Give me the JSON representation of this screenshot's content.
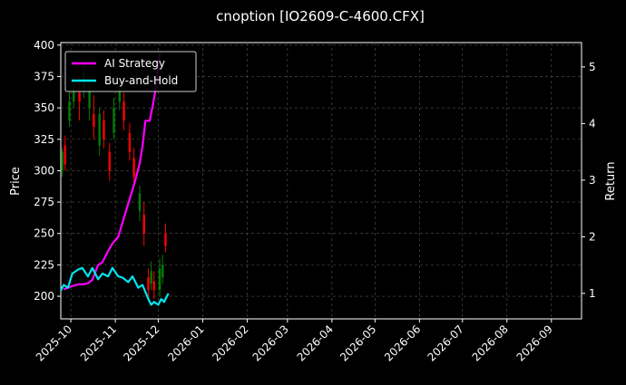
{
  "chart_data": {
    "type": "line",
    "title": "cnoption [IO2609-C-4600.CFX]",
    "xlabel": "",
    "ylabel_left": "Price",
    "ylabel_right": "Return",
    "x_ticks": [
      "2025-10",
      "2025-11",
      "2025-12",
      "2026-01",
      "2026-02",
      "2026-03",
      "2026-04",
      "2026-05",
      "2026-06",
      "2026-07",
      "2026-08",
      "2026-09"
    ],
    "x_range": [
      "2025-09-24",
      "2026-09-22"
    ],
    "y_left_ticks": [
      200,
      225,
      250,
      275,
      300,
      325,
      350,
      375,
      400
    ],
    "y_left_range": [
      182,
      402
    ],
    "y_right_ticks": [
      1,
      2,
      3,
      4,
      5
    ],
    "y_right_range": [
      0.55,
      5.43
    ],
    "grid": true,
    "legend_position": "top-left",
    "colors": {
      "background": "#000000",
      "grid": "#555555",
      "up": "#008000",
      "down": "#ff0000",
      "ai_strategy": "#ff00ff",
      "buy_and_hold": "#00e5ee"
    },
    "series": [
      {
        "name": "AI Strategy",
        "axis": "right",
        "dates": [
          "2025-09-26",
          "2025-09-29",
          "2025-10-02",
          "2025-10-06",
          "2025-10-09",
          "2025-10-13",
          "2025-10-16",
          "2025-10-20",
          "2025-10-23",
          "2025-10-27",
          "2025-10-30",
          "2025-11-03",
          "2025-11-06",
          "2025-11-09",
          "2025-11-12",
          "2025-11-15",
          "2025-11-18",
          "2025-11-20",
          "2025-11-22",
          "2025-11-25",
          "2025-11-27",
          "2025-11-29",
          "2025-12-01",
          "2025-12-02"
        ],
        "values": [
          1.07,
          1.1,
          1.13,
          1.16,
          1.16,
          1.18,
          1.24,
          1.5,
          1.55,
          1.75,
          1.88,
          2.0,
          2.25,
          2.5,
          2.75,
          3.0,
          3.3,
          3.6,
          4.05,
          4.05,
          4.3,
          4.6,
          5.0,
          5.25
        ]
      },
      {
        "name": "Buy-and-Hold",
        "axis": "right",
        "dates": [
          "2025-09-24",
          "2025-09-26",
          "2025-09-29",
          "2025-10-02",
          "2025-10-06",
          "2025-10-09",
          "2025-10-13",
          "2025-10-16",
          "2025-10-20",
          "2025-10-23",
          "2025-10-27",
          "2025-10-30",
          "2025-11-03",
          "2025-11-06",
          "2025-11-10",
          "2025-11-13",
          "2025-11-17",
          "2025-11-20",
          "2025-11-24",
          "2025-11-26",
          "2025-11-28",
          "2025-12-01",
          "2025-12-03",
          "2025-12-05",
          "2025-12-08"
        ],
        "values": [
          1.05,
          1.15,
          1.1,
          1.35,
          1.42,
          1.45,
          1.3,
          1.45,
          1.25,
          1.35,
          1.3,
          1.45,
          1.3,
          1.28,
          1.2,
          1.3,
          1.1,
          1.15,
          0.9,
          0.8,
          0.85,
          0.8,
          0.9,
          0.85,
          1.0
        ]
      }
    ],
    "candles": [
      {
        "date": "2025-09-25",
        "open": 300,
        "close": 315,
        "high": 318,
        "low": 295
      },
      {
        "date": "2025-09-27",
        "open": 320,
        "close": 305,
        "high": 328,
        "low": 300
      },
      {
        "date": "2025-09-30",
        "open": 340,
        "close": 355,
        "high": 362,
        "low": 335
      },
      {
        "date": "2025-10-03",
        "open": 355,
        "close": 370,
        "high": 378,
        "low": 350
      },
      {
        "date": "2025-10-07",
        "open": 362,
        "close": 355,
        "high": 375,
        "low": 340
      },
      {
        "date": "2025-10-10",
        "open": 365,
        "close": 378,
        "high": 385,
        "low": 358
      },
      {
        "date": "2025-10-14",
        "open": 350,
        "close": 365,
        "high": 372,
        "low": 340
      },
      {
        "date": "2025-10-17",
        "open": 345,
        "close": 335,
        "high": 360,
        "low": 325
      },
      {
        "date": "2025-10-21",
        "open": 320,
        "close": 345,
        "high": 350,
        "low": 312
      },
      {
        "date": "2025-10-24",
        "open": 340,
        "close": 325,
        "high": 348,
        "low": 318
      },
      {
        "date": "2025-10-28",
        "open": 315,
        "close": 300,
        "high": 322,
        "low": 292
      },
      {
        "date": "2025-10-31",
        "open": 330,
        "close": 350,
        "high": 358,
        "low": 325
      },
      {
        "date": "2025-11-04",
        "open": 355,
        "close": 365,
        "high": 372,
        "low": 348
      },
      {
        "date": "2025-11-07",
        "open": 355,
        "close": 340,
        "high": 362,
        "low": 332
      },
      {
        "date": "2025-11-11",
        "open": 330,
        "close": 315,
        "high": 338,
        "low": 308
      },
      {
        "date": "2025-11-14",
        "open": 310,
        "close": 295,
        "high": 318,
        "low": 288
      },
      {
        "date": "2025-11-18",
        "open": 268,
        "close": 282,
        "high": 288,
        "low": 260
      },
      {
        "date": "2025-11-21",
        "open": 265,
        "close": 250,
        "high": 275,
        "low": 240
      },
      {
        "date": "2025-11-24",
        "open": 215,
        "close": 205,
        "high": 222,
        "low": 200
      },
      {
        "date": "2025-11-26",
        "open": 210,
        "close": 220,
        "high": 228,
        "low": 205
      },
      {
        "date": "2025-11-28",
        "open": 212,
        "close": 205,
        "high": 220,
        "low": 198
      },
      {
        "date": "2025-12-02",
        "open": 205,
        "close": 222,
        "high": 230,
        "low": 200
      },
      {
        "date": "2025-12-04",
        "open": 215,
        "close": 225,
        "high": 233,
        "low": 210
      },
      {
        "date": "2025-12-06",
        "open": 250,
        "close": 240,
        "high": 258,
        "low": 235
      }
    ]
  }
}
